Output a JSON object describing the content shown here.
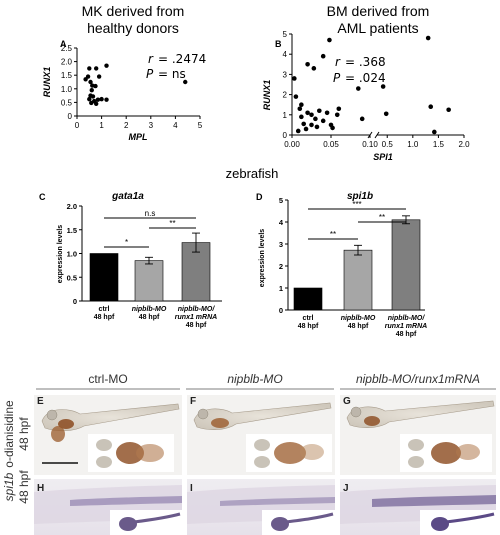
{
  "top_headers": {
    "left": [
      "MK derived from",
      "healthy donors"
    ],
    "right": [
      "BM derived from",
      "AML patients"
    ]
  },
  "zebrafish_label": "zebrafish",
  "colors": {
    "bar_ctrl": "#000000",
    "bar_nipblb": "#a6a6a6",
    "bar_rescue": "#7f7f7f",
    "embryo_stain": "#8b4a1e",
    "embryo_body": "#dcd6cc",
    "ish_stain": "#5b4a86",
    "ish_body": "#d8d1de"
  },
  "chart_data": [
    {
      "type": "scatter",
      "panel": "A",
      "xlabel": "MPL",
      "ylabel": "RUNX1",
      "xlim": [
        0,
        5
      ],
      "ylim": [
        0,
        2.5
      ],
      "xticks": [
        "0",
        "1",
        "2",
        "3",
        "4",
        "5"
      ],
      "yticks": [
        "0",
        "0.5",
        "1.0",
        "1.5",
        "2.0",
        "2.5"
      ],
      "stats": {
        "r_label": "r",
        "r_eq": "= .2474",
        "p_label": "P",
        "p_eq": "= ns"
      },
      "points": [
        [
          0.5,
          1.75
        ],
        [
          0.78,
          1.75
        ],
        [
          1.2,
          1.85
        ],
        [
          0.45,
          1.45
        ],
        [
          0.9,
          1.45
        ],
        [
          0.35,
          1.35
        ],
        [
          0.55,
          1.25
        ],
        [
          0.62,
          1.12
        ],
        [
          0.75,
          1.1
        ],
        [
          0.6,
          0.95
        ],
        [
          0.55,
          0.75
        ],
        [
          0.65,
          0.72
        ],
        [
          0.5,
          0.62
        ],
        [
          0.85,
          0.6
        ],
        [
          1.0,
          0.62
        ],
        [
          0.7,
          0.55
        ],
        [
          1.2,
          0.6
        ],
        [
          0.58,
          0.48
        ],
        [
          0.78,
          0.45
        ],
        [
          4.4,
          1.25
        ]
      ]
    },
    {
      "type": "scatter",
      "panel": "B",
      "xlabel": "SPI1",
      "ylabel": "RUNX1",
      "xlim": [
        0,
        2.0
      ],
      "ylim": [
        0,
        5
      ],
      "broken_axis": {
        "left_segment": [
          0,
          0.1
        ],
        "right_segment": [
          0.3,
          2.0
        ]
      },
      "xticks": [
        "0.00",
        "0.05",
        "0.10",
        "0.5",
        "1.0",
        "1.5",
        "2.0"
      ],
      "yticks": [
        "0",
        "1",
        "2",
        "3",
        "4",
        "5"
      ],
      "stats": {
        "r_label": "r",
        "r_eq": "= .368",
        "p_label": "P",
        "p_eq": "= .024"
      },
      "points_left": [
        [
          0.003,
          2.8
        ],
        [
          0.005,
          1.9
        ],
        [
          0.01,
          1.3
        ],
        [
          0.012,
          0.9
        ],
        [
          0.015,
          0.55
        ],
        [
          0.018,
          0.3
        ],
        [
          0.008,
          0.2
        ],
        [
          0.02,
          1.1
        ],
        [
          0.025,
          1.0
        ],
        [
          0.025,
          0.5
        ],
        [
          0.03,
          0.8
        ],
        [
          0.032,
          0.4
        ],
        [
          0.035,
          1.2
        ],
        [
          0.04,
          0.7
        ],
        [
          0.045,
          1.1
        ],
        [
          0.05,
          0.5
        ],
        [
          0.02,
          3.5
        ],
        [
          0.028,
          3.3
        ],
        [
          0.04,
          3.9
        ],
        [
          0.048,
          4.7
        ],
        [
          0.052,
          0.35
        ],
        [
          0.058,
          1.0
        ],
        [
          0.06,
          1.3
        ],
        [
          0.012,
          1.5
        ],
        [
          0.085,
          2.3
        ],
        [
          0.09,
          0.8
        ]
      ],
      "points_right": [
        [
          0.42,
          2.4
        ],
        [
          0.48,
          1.05
        ],
        [
          1.3,
          4.8
        ],
        [
          1.35,
          1.4
        ],
        [
          1.42,
          0.15
        ],
        [
          1.7,
          1.25
        ]
      ]
    },
    {
      "type": "bar",
      "panel": "C",
      "title": "gata1a",
      "ylabel": "expression levels",
      "ylim": [
        0,
        2.0
      ],
      "yticks": [
        "0",
        "0.5",
        "1.0",
        "1.5",
        "2.0"
      ],
      "categories": [
        [
          "ctrl",
          "48 hpf"
        ],
        [
          "nipblb-MO",
          "48 hpf"
        ],
        [
          "nipblb-MO/",
          "runx1 mRNA",
          "48 hpf"
        ]
      ],
      "values": [
        1.0,
        0.85,
        1.23
      ],
      "errors": [
        0,
        0.07,
        0.2
      ],
      "significance": [
        {
          "pair": [
            0,
            1
          ],
          "label": "*"
        },
        {
          "pair": [
            1,
            2
          ],
          "label": "**"
        },
        {
          "pair": [
            0,
            2
          ],
          "label": "n.s"
        }
      ]
    },
    {
      "type": "bar",
      "panel": "D",
      "title": "spi1b",
      "ylabel": "expression levels",
      "ylim": [
        0,
        5
      ],
      "yticks": [
        "0",
        "1",
        "2",
        "3",
        "4",
        "5"
      ],
      "categories": [
        [
          "ctrl",
          "48 hpf"
        ],
        [
          "nipblb-MO",
          "48 hpf"
        ],
        [
          "nipblb-MO/",
          "runx1 mRNA",
          "48 hpf"
        ]
      ],
      "values": [
        1.0,
        2.72,
        4.1
      ],
      "errors": [
        0,
        0.22,
        0.18
      ],
      "significance": [
        {
          "pair": [
            0,
            1
          ],
          "label": "**"
        },
        {
          "pair": [
            1,
            2
          ],
          "label": "**"
        },
        {
          "pair": [
            0,
            2
          ],
          "label": "***"
        }
      ]
    }
  ],
  "image_panels": {
    "column_headers": [
      "ctrl-MO",
      "nipblb-MO",
      "nipblb-MO/runx1mRNA"
    ],
    "row_labels": [
      [
        "o-dianisidine",
        "48 hpf"
      ],
      [
        "spi1b",
        "48 hpf"
      ]
    ],
    "letters_top": [
      "E",
      "F",
      "G"
    ],
    "letters_bottom": [
      "H",
      "I",
      "J"
    ]
  }
}
